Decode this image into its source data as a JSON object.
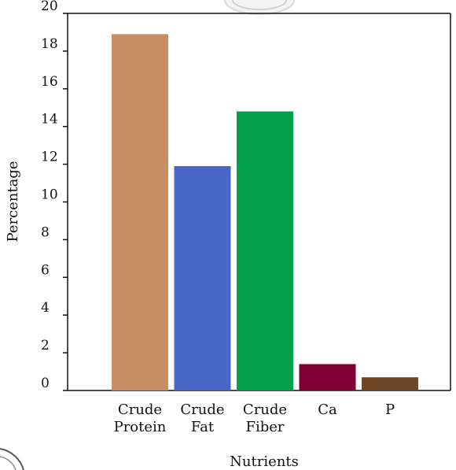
{
  "chart_data": {
    "type": "bar",
    "categories": [
      [
        "Crude",
        "Protein"
      ],
      [
        "Crude",
        "Fat"
      ],
      [
        "Crude",
        "Fiber"
      ],
      [
        "Ca"
      ],
      [
        "P"
      ]
    ],
    "values": [
      18.9,
      11.9,
      14.8,
      1.4,
      0.7
    ],
    "colors": [
      "#c78e62",
      "#4a67c8",
      "#03a04b",
      "#7e0033",
      "#6f4528"
    ],
    "xlabel": "Nutrients",
    "ylabel": "Percentage",
    "ylim": [
      0,
      20
    ],
    "yticks": [
      "0",
      "2",
      "4",
      "6",
      "8",
      "10",
      "12",
      "14",
      "16",
      "18",
      "20"
    ],
    "grid": false
  }
}
